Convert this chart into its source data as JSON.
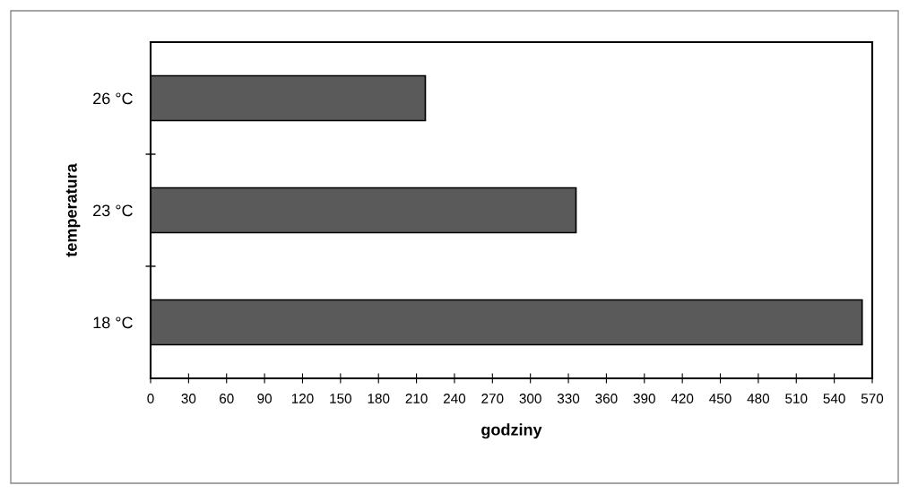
{
  "chart_data": {
    "type": "bar",
    "orientation": "horizontal",
    "xlabel": "godziny",
    "ylabel": "temperatura",
    "categories": [
      "26 °C",
      "23 °C",
      "18 °C"
    ],
    "values": [
      217,
      336,
      562
    ],
    "color": "#5a5a5a",
    "xlim": [
      0,
      570
    ],
    "xticks": [
      0,
      30,
      60,
      90,
      120,
      150,
      180,
      210,
      240,
      270,
      300,
      330,
      360,
      390,
      420,
      450,
      480,
      510,
      540,
      570
    ],
    "grid": false,
    "legend": false
  }
}
